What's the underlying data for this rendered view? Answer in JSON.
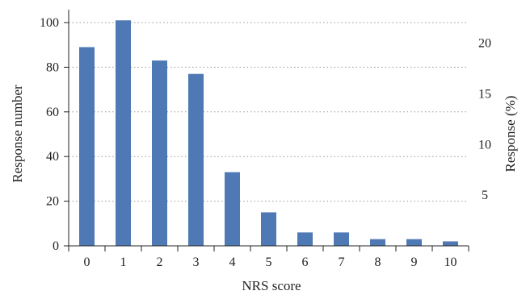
{
  "chart_data": {
    "type": "bar",
    "title": "",
    "xlabel": "NRS score",
    "ylabel": "Response number",
    "y2label": "Response (%)",
    "categories": [
      "0",
      "1",
      "2",
      "3",
      "4",
      "5",
      "6",
      "7",
      "8",
      "9",
      "10"
    ],
    "values": [
      89,
      101,
      83,
      77,
      33,
      15,
      6,
      6,
      3,
      3,
      2
    ],
    "ylim": [
      0,
      105
    ],
    "yticks": [
      0,
      20,
      40,
      60,
      80,
      100
    ],
    "y2ticks": [
      5,
      10,
      15,
      20
    ],
    "y2_per_left_unit": 0.2203,
    "grid": "dotted horizontal",
    "legend": "none",
    "colors": {
      "bar": "#4e79b4",
      "grid": "#9a9a9a",
      "axis": "#222222"
    }
  }
}
